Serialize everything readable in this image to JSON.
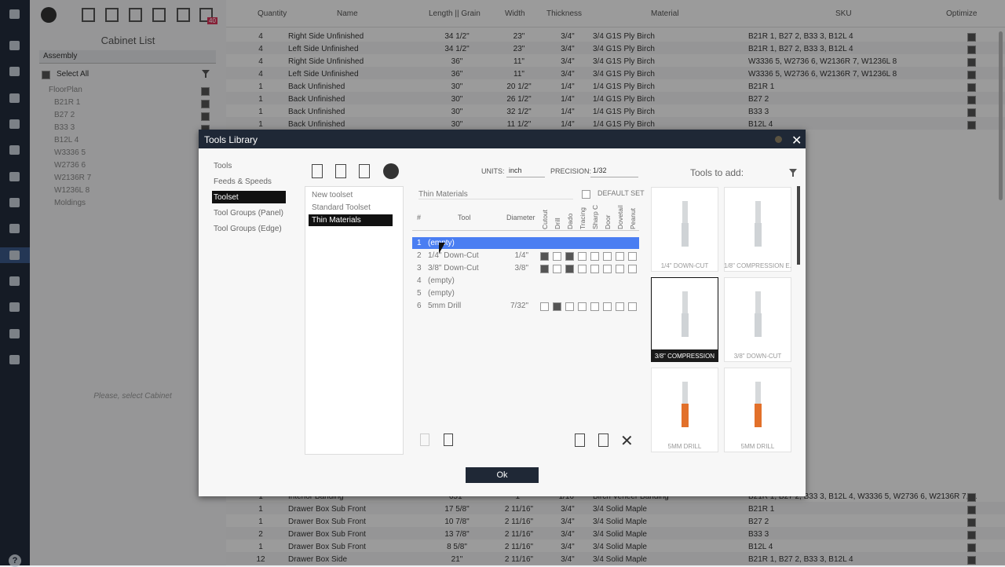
{
  "sidebar": {
    "help": "?"
  },
  "cabinet_panel": {
    "badge": "40",
    "title": "Cabinet List",
    "assembly": "Assembly",
    "select_all": "Select All",
    "tree": [
      "FloorPlan",
      "B21R 1",
      "B27 2",
      "B33 3",
      "B12L 4",
      "W3336 5",
      "W2736 6",
      "W2136R 7",
      "W1236L 8",
      "Moldings"
    ],
    "placeholder": "Please, select Cabinet"
  },
  "table": {
    "headers": [
      "Quantity",
      "Name",
      "Length || Grain",
      "Width",
      "Thickness",
      "Material",
      "SKU",
      "Optimize"
    ],
    "rows_top": [
      [
        "4",
        "Right Side Unfinished",
        "34 1/2\"",
        "23\"",
        "3/4\"",
        "3/4 G1S Ply Birch",
        "B21R 1, B27 2, B33 3, B12L 4"
      ],
      [
        "4",
        "Left Side Unfinished",
        "34 1/2\"",
        "23\"",
        "3/4\"",
        "3/4 G1S Ply Birch",
        "B21R 1, B27 2, B33 3, B12L 4"
      ],
      [
        "4",
        "Right Side Unfinished",
        "36\"",
        "11\"",
        "3/4\"",
        "3/4 G1S Ply Birch",
        "W3336 5, W2736 6, W2136R 7, W1236L 8"
      ],
      [
        "4",
        "Left Side Unfinished",
        "36\"",
        "11\"",
        "3/4\"",
        "3/4 G1S Ply Birch",
        "W3336 5, W2736 6, W2136R 7, W1236L 8"
      ],
      [
        "1",
        "Back Unfinished",
        "30\"",
        "20 1/2\"",
        "1/4\"",
        "1/4 G1S Ply Birch",
        "B21R 1"
      ],
      [
        "1",
        "Back Unfinished",
        "30\"",
        "26 1/2\"",
        "1/4\"",
        "1/4 G1S Ply Birch",
        "B27 2"
      ],
      [
        "1",
        "Back Unfinished",
        "30\"",
        "32 1/2\"",
        "1/4\"",
        "1/4 G1S Ply Birch",
        "B33 3"
      ],
      [
        "1",
        "Back Unfinished",
        "30\"",
        "11 1/2\"",
        "1/4\"",
        "1/4 G1S Ply Birch",
        "B12L 4"
      ]
    ],
    "rows_bottom": [
      [
        "1",
        "Interior Banding",
        "651\"",
        "1\"",
        "1/16\"",
        "Birch Veneer Banding",
        "B21R 1, B27 2, B33 3, B12L 4, W3336 5, W2736 6, W2136R 7, ..."
      ],
      [
        "1",
        "Drawer Box Sub Front",
        "17 5/8\"",
        "2 11/16\"",
        "3/4\"",
        "3/4 Solid Maple",
        "B21R 1"
      ],
      [
        "1",
        "Drawer Box Sub Front",
        "10 7/8\"",
        "2 11/16\"",
        "3/4\"",
        "3/4 Solid Maple",
        "B27 2"
      ],
      [
        "2",
        "Drawer Box Sub Front",
        "13 7/8\"",
        "2 11/16\"",
        "3/4\"",
        "3/4 Solid Maple",
        "B33 3"
      ],
      [
        "1",
        "Drawer Box Sub Front",
        "8 5/8\"",
        "2 11/16\"",
        "3/4\"",
        "3/4 Solid Maple",
        "B12L 4"
      ],
      [
        "12",
        "Drawer Box Side",
        "21\"",
        "2 11/16\"",
        "3/4\"",
        "3/4 Solid Maple",
        "B21R 1, B27 2, B33 3, B12L 4"
      ]
    ]
  },
  "dialog": {
    "title": "Tools Library",
    "menu": [
      "Tools",
      "Feeds & Speeds",
      "Toolset",
      "Tool Groups (Panel)",
      "Tool Groups (Edge)"
    ],
    "menu_selected": 2,
    "toolsets": [
      "New toolset",
      "Standard Toolset",
      "Thin Materials"
    ],
    "toolset_selected": 2,
    "units_label": "UNITS:",
    "units": "inch",
    "precision_label": "PRECISION:",
    "precision": "1/32",
    "toolset_name": "Thin Materials",
    "default_set": "DEFAULT SET",
    "tool_headers": [
      "#",
      "Tool",
      "Diameter"
    ],
    "op_headers": [
      "Cutout",
      "Drill",
      "Dado",
      "Tracing",
      "Sharp C",
      "Door",
      "Dovetail",
      "Peanut"
    ],
    "tools": [
      {
        "num": "1",
        "name": "(empty)",
        "selected": true
      },
      {
        "num": "2",
        "name": "1/4\" Down-Cut",
        "diameter": "1/4\"",
        "ops": [
          true,
          false,
          true,
          false,
          false,
          false,
          false,
          false
        ]
      },
      {
        "num": "3",
        "name": "3/8\" Down-Cut",
        "diameter": "3/8\"",
        "ops": [
          true,
          false,
          true,
          false,
          false,
          false,
          false,
          false
        ]
      },
      {
        "num": "4",
        "name": "(empty)"
      },
      {
        "num": "5",
        "name": "(empty)"
      },
      {
        "num": "6",
        "name": "5mm Drill",
        "diameter": "7/32\"",
        "ops": [
          false,
          true,
          false,
          false,
          false,
          false,
          false,
          false
        ]
      }
    ],
    "tools_to_add": "Tools to add:",
    "library": [
      {
        "label": "1/4\" DOWN-CUT",
        "color": "#cfd3d6"
      },
      {
        "label": "1/8\" COMPRESSION E...",
        "color": "#cfd3d6"
      },
      {
        "label": "3/8\" COMPRESSION",
        "color": "#cfd3d6"
      },
      {
        "label": "3/8\" DOWN-CUT",
        "color": "#cfd3d6"
      },
      {
        "label": "5MM DRILL",
        "color": "#e2702a"
      },
      {
        "label": "5MM DRILL",
        "color": "#e2702a"
      }
    ],
    "library_selected": 2,
    "ok": "Ok"
  }
}
